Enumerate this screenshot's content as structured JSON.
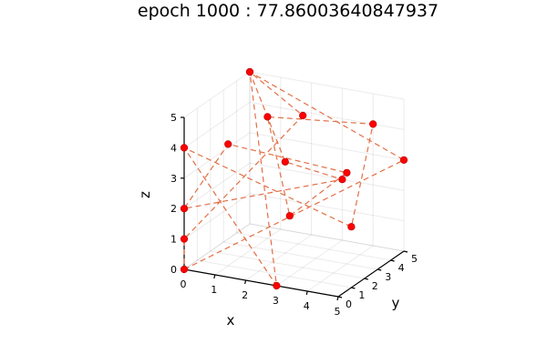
{
  "title": "epoch 1000 : 77.86003640847937",
  "chart_data": {
    "type": "scatter",
    "subtype": "3d-scatter-with-path",
    "title": "epoch 1000 : 77.86003640847937",
    "xlabel": "x",
    "ylabel": "y",
    "zlabel": "z",
    "xlim": [
      0,
      5
    ],
    "ylim": [
      0,
      5
    ],
    "zlim": [
      0,
      5
    ],
    "xticks": [
      "0",
      "1",
      "2",
      "3",
      "4",
      "5"
    ],
    "yticks": [
      "0",
      "1",
      "2",
      "3",
      "4",
      "5"
    ],
    "zticks": [
      "0",
      "1",
      "2",
      "3",
      "4",
      "5"
    ],
    "grid": true,
    "legend": "none",
    "marker_color": "#ff0000",
    "path_color": "#e26f46",
    "path_style": "dashed",
    "points": [
      {
        "x": 0,
        "y": 0,
        "z": 0
      },
      {
        "x": 5,
        "y": 5,
        "z": 3
      },
      {
        "x": 0,
        "y": 5,
        "z": 5
      },
      {
        "x": 3,
        "y": 0,
        "z": 0
      },
      {
        "x": 0,
        "y": 0,
        "z": 4
      },
      {
        "x": 5,
        "y": 1,
        "z": 2
      },
      {
        "x": 4,
        "y": 5,
        "z": 4
      },
      {
        "x": 1,
        "y": 4,
        "z": 4
      },
      {
        "x": 3,
        "y": 1,
        "z": 2
      },
      {
        "x": 4,
        "y": 3,
        "z": 3
      },
      {
        "x": 1,
        "y": 1,
        "z": 4
      },
      {
        "x": 0,
        "y": 0,
        "z": 2
      },
      {
        "x": 3,
        "y": 5,
        "z": 2
      },
      {
        "x": 2,
        "y": 3,
        "z": 3
      },
      {
        "x": 0,
        "y": 5,
        "z": 5
      },
      {
        "x": 3,
        "y": 2,
        "z": 5
      },
      {
        "x": 0,
        "y": 0,
        "z": 1
      }
    ],
    "path_closed": true
  }
}
